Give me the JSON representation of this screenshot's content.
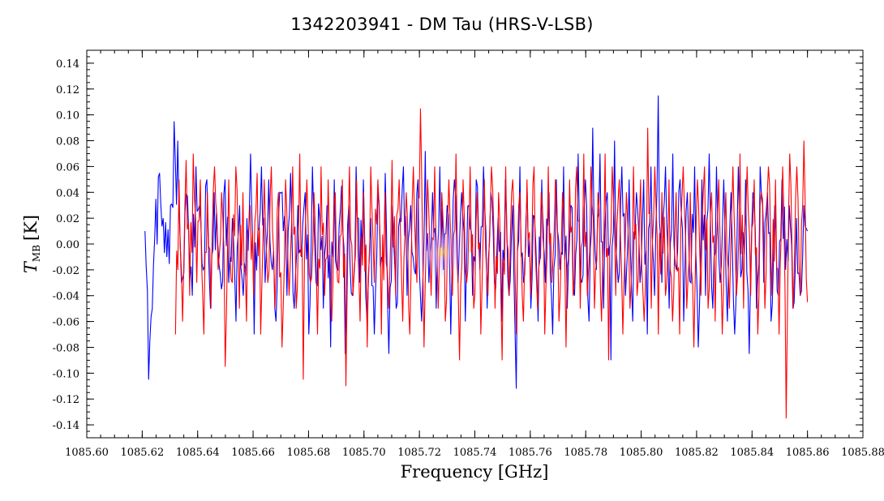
{
  "chart_data": {
    "type": "line",
    "title": "1342203941 - DM Tau (HRS-V-LSB)",
    "xlabel": "Frequency [GHz]",
    "ylabel": {
      "main": "T",
      "subscript": "MB",
      "unit": "[K]"
    },
    "xlim": [
      1085.6,
      1085.88
    ],
    "ylim": [
      -0.15,
      0.15
    ],
    "x_ticks": [
      "1085.60",
      "1085.62",
      "1085.64",
      "1085.66",
      "1085.68",
      "1085.70",
      "1085.72",
      "1085.74",
      "1085.76",
      "1085.78",
      "1085.80",
      "1085.82",
      "1085.84",
      "1085.86",
      "1085.88"
    ],
    "y_ticks": [
      "0.14",
      "0.12",
      "0.10",
      "0.08",
      "0.06",
      "0.04",
      "0.02",
      "0.00",
      "-0.02",
      "-0.04",
      "-0.06",
      "-0.08",
      "-0.10",
      "-0.12",
      "-0.14"
    ],
    "x_tick_values": [
      1085.6,
      1085.62,
      1085.64,
      1085.66,
      1085.68,
      1085.7,
      1085.72,
      1085.74,
      1085.76,
      1085.78,
      1085.8,
      1085.82,
      1085.84,
      1085.86,
      1085.88
    ],
    "y_tick_values": [
      0.14,
      0.12,
      0.1,
      0.08,
      0.06,
      0.04,
      0.02,
      0.0,
      -0.02,
      -0.04,
      -0.06,
      -0.08,
      -0.1,
      -0.12,
      -0.14
    ],
    "grid": false,
    "legend": "none",
    "series": [
      {
        "color": "#0000ff",
        "x_start": 1085.621,
        "x_end": 1085.86,
        "values": [
          0.01,
          -0.105,
          -0.05,
          0.035,
          0.055,
          0.02,
          -0.01,
          0.03,
          0.095,
          0.08,
          -0.03,
          0.025,
          0.01,
          -0.04,
          0.06,
          0.03,
          -0.02,
          0.05,
          -0.05,
          0.04,
          0.0,
          -0.035,
          0.05,
          -0.03,
          0.02,
          -0.06,
          0.03,
          -0.04,
          0.02,
          0.07,
          -0.07,
          0.01,
          0.06,
          -0.03,
          0.05,
          -0.02,
          -0.06,
          0.04,
          0.01,
          -0.04,
          0.055,
          -0.05,
          0.03,
          -0.01,
          0.04,
          -0.07,
          0.06,
          -0.03,
          0.02,
          -0.05,
          0.03,
          -0.08,
          0.05,
          -0.02,
          0.045,
          -0.085,
          0.03,
          -0.04,
          0.06,
          -0.03,
          0.05,
          -0.06,
          0.02,
          -0.07,
          0.04,
          -0.01,
          0.055,
          -0.085,
          0.03,
          -0.05,
          0.02,
          0.06,
          -0.04,
          0.03,
          -0.02,
          0.05,
          -0.06,
          0.072,
          -0.03,
          0.04,
          -0.05,
          0.06,
          -0.02,
          0.03,
          -0.07,
          0.05,
          -0.03,
          0.04,
          -0.06,
          0.03,
          -0.04,
          0.05,
          -0.02,
          0.06,
          -0.05,
          0.04,
          -0.03,
          0.02,
          -0.06,
          0.05,
          -0.04,
          0.03,
          -0.112,
          0.06,
          -0.03,
          0.04,
          -0.05,
          0.02,
          -0.06,
          0.05,
          -0.03,
          0.04,
          -0.07,
          0.05,
          -0.02,
          0.06,
          -0.05,
          0.03,
          -0.04,
          0.07,
          -0.03,
          0.05,
          -0.06,
          0.09,
          -0.02,
          0.07,
          -0.05,
          0.04,
          -0.09,
          0.08,
          -0.03,
          0.06,
          -0.04,
          0.05,
          -0.06,
          0.04,
          -0.03,
          0.05,
          -0.07,
          0.06,
          -0.04,
          0.115,
          -0.03,
          0.06,
          -0.05,
          0.07,
          -0.02,
          0.05,
          -0.06,
          0.04,
          -0.03,
          0.06,
          -0.08,
          0.05,
          -0.04,
          0.07,
          -0.05,
          0.06,
          -0.03,
          0.05,
          -0.06,
          0.04,
          -0.07,
          0.06,
          -0.02,
          0.05,
          -0.085,
          0.04,
          -0.05,
          0.06,
          -0.03,
          0.04,
          -0.06,
          0.03,
          -0.04,
          0.05,
          -0.02,
          0.03,
          -0.05,
          0.02,
          -0.04,
          0.03,
          0.01
        ]
      },
      {
        "color": "#ff0000",
        "x_start": 1085.632,
        "x_end": 1085.86,
        "values": [
          -0.07,
          0.05,
          -0.06,
          0.065,
          -0.04,
          0.07,
          -0.03,
          0.05,
          -0.07,
          0.04,
          -0.05,
          0.06,
          -0.02,
          0.04,
          -0.095,
          0.05,
          -0.03,
          0.06,
          -0.05,
          0.04,
          -0.06,
          0.03,
          -0.04,
          0.055,
          -0.07,
          0.05,
          -0.03,
          0.06,
          -0.05,
          0.04,
          -0.08,
          0.05,
          -0.04,
          0.06,
          -0.05,
          0.07,
          -0.105,
          0.05,
          -0.03,
          0.04,
          -0.07,
          0.06,
          -0.04,
          0.05,
          -0.06,
          0.04,
          -0.03,
          0.05,
          -0.11,
          0.06,
          -0.04,
          0.05,
          -0.06,
          0.04,
          -0.08,
          0.06,
          -0.03,
          0.05,
          -0.07,
          0.04,
          -0.05,
          0.065,
          -0.04,
          0.05,
          -0.06,
          0.04,
          -0.07,
          0.06,
          -0.03,
          0.105,
          -0.08,
          0.05,
          -0.04,
          0.06,
          -0.05,
          0.04,
          -0.06,
          0.05,
          -0.04,
          0.07,
          -0.09,
          0.05,
          -0.03,
          0.06,
          -0.05,
          0.04,
          -0.07,
          0.05,
          -0.04,
          0.06,
          -0.05,
          0.04,
          -0.09,
          0.06,
          -0.04,
          0.05,
          -0.07,
          0.04,
          -0.06,
          0.05,
          -0.04,
          0.06,
          -0.05,
          0.04,
          -0.07,
          0.06,
          -0.03,
          0.05,
          -0.06,
          0.04,
          -0.08,
          0.05,
          -0.04,
          0.06,
          -0.05,
          0.07,
          -0.04,
          0.06,
          -0.05,
          0.04,
          -0.06,
          0.07,
          -0.09,
          0.06,
          -0.04,
          0.05,
          -0.07,
          0.04,
          -0.05,
          0.06,
          -0.04,
          0.05,
          -0.06,
          0.09,
          -0.05,
          0.06,
          -0.07,
          0.04,
          -0.04,
          0.05,
          -0.06,
          0.04,
          -0.07,
          0.06,
          -0.05,
          0.04,
          -0.08,
          0.05,
          -0.04,
          0.06,
          -0.05,
          0.04,
          -0.06,
          0.05,
          -0.07,
          0.04,
          -0.05,
          0.06,
          -0.04,
          0.07,
          -0.05,
          0.06,
          -0.04,
          0.05,
          -0.07,
          0.04,
          -0.05,
          0.06,
          -0.04,
          0.05,
          -0.07,
          0.06,
          -0.135,
          0.07,
          -0.05,
          0.06,
          -0.04,
          0.08,
          -0.045
        ]
      }
    ]
  }
}
